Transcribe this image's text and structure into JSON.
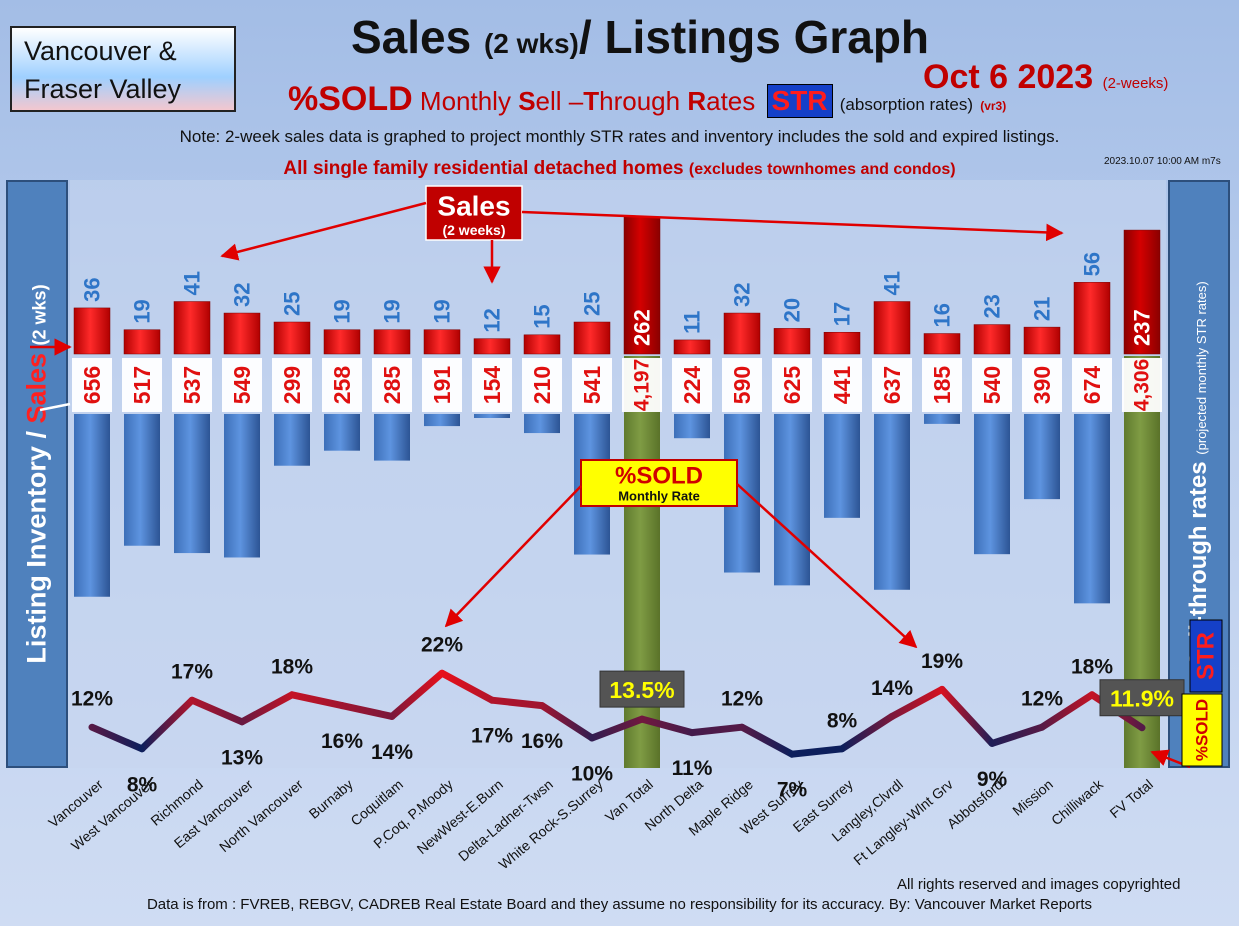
{
  "region": {
    "line1": "Vancouver &",
    "line2": "Fraser Valley"
  },
  "title": {
    "main": "Sales",
    "small": "(2 wks)",
    "rest": "/ Listings Graph"
  },
  "date": {
    "main": "Oct 6  2023",
    "small": "(2-weeks)"
  },
  "subtitle": {
    "sold": "%SOLD",
    "monthly": "Monthly",
    "S": "S",
    "ell": "ell –",
    "T": "T",
    "hrough": "hrough",
    "R": "R",
    "ates": "ates",
    "str": "STR",
    "absorption": "(absorption rates)",
    "vr": "(vr3)"
  },
  "note": "Note: 2-week sales data is graphed to project monthly STR rates and inventory includes the sold and expired listings.",
  "heading": {
    "main": "All single family residential detached homes",
    "small": "(excludes townhomes and condos)"
  },
  "timestamp": "2023.10.07 10:00 AM m7s",
  "left_banner": {
    "part1": "Listing Inventory / ",
    "part2": "Sales",
    "part3": "(2  wks)"
  },
  "right_banner": {
    "main": "Sell-through rates",
    "small": "(projected monthly STR rates)",
    "str": "STR",
    "sold": "%SOLD"
  },
  "callouts": {
    "sales_title": "Sales",
    "sales_sub": "(2 weeks)",
    "sold_title": "%SOLD",
    "sold_sub": "Monthly Rate"
  },
  "footer": {
    "rights": "All rights reserved and  images copyrighted",
    "source": "Data is from : FVREB, REBGV, CADREB Real Estate Board and they assume no responsibility for its accuracy. By: Vancouver Market Reports"
  },
  "colors": {
    "sales_bar": "#e81010",
    "total_sales_bar": "#b30000",
    "inventory_bar": "#4f88d6",
    "total_inventory_bar": "#76923c",
    "sales_label": "#2e75c8",
    "inventory_label": "#e01010",
    "line_low": "#0d1f5c",
    "line_high": "#e8101a"
  },
  "chart_data": {
    "type": "bar",
    "categories": [
      "Vancouver",
      "West Vancouver",
      "Richmond",
      "East Vancouver",
      "North Vancouver",
      "Burnaby",
      "Coquitlam",
      "P.Coq, P.Moody",
      "NewWest-E.Burn",
      "Delta-Ladner-Twsn",
      "White Rock-S.Surrey",
      "Van Total",
      "North Delta",
      "Maple Ridge",
      "West Surrey",
      "East Surrey",
      "Langley,Clvrdl",
      "Ft Langley-Wlnt Grv",
      "Abbotsford",
      "Mission",
      "Chilliwack",
      "FV Total"
    ],
    "totals": [
      "Van Total",
      "FV Total"
    ],
    "series": [
      {
        "name": "Sales",
        "values": [
          36,
          19,
          41,
          32,
          25,
          19,
          19,
          19,
          12,
          15,
          25,
          262,
          11,
          32,
          20,
          17,
          41,
          16,
          23,
          21,
          56,
          237
        ]
      },
      {
        "name": "Listing Inventory",
        "values": [
          "656",
          "517",
          "537",
          "549",
          "299",
          "258",
          "285",
          "191",
          "154",
          "210",
          "541",
          "4,197",
          "224",
          "590",
          "625",
          "441",
          "637",
          "185",
          "540",
          "390",
          "674",
          "4,306"
        ]
      },
      {
        "name": "%SOLD",
        "values": [
          "12%",
          "8%",
          "17%",
          "13%",
          "18%",
          "16%",
          "14%",
          "22%",
          "17%",
          "16%",
          "10%",
          "13.5%",
          "11%",
          "12%",
          "7%",
          "8%",
          "14%",
          "19%",
          "9%",
          "12%",
          "18%",
          "11.9%"
        ]
      }
    ]
  }
}
